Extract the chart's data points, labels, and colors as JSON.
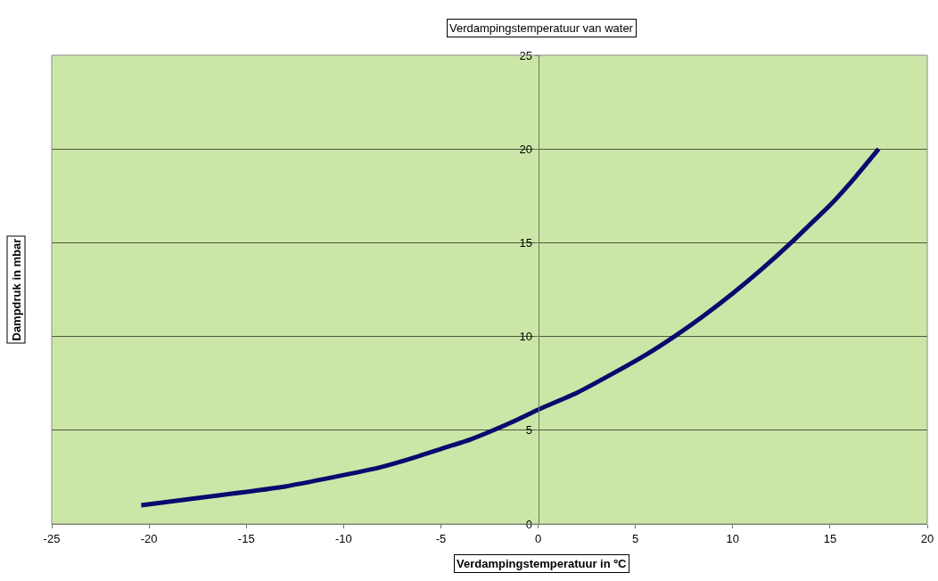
{
  "chart_data": {
    "type": "line",
    "title": "Verdampingstemperatuur van water",
    "xlabel": "Verdampingstemperatuur in ºC",
    "ylabel": "Dampdruk in mbar",
    "x": [
      -20.4,
      -17,
      -13,
      -10.5,
      -8.2,
      -6.5,
      -5,
      -3.5,
      -2.3,
      -1,
      0,
      2,
      3.8,
      5.5,
      7,
      8.5,
      10,
      11.5,
      13,
      14,
      15,
      16.3,
      17.5
    ],
    "series": [
      {
        "color": "#0a0a6e",
        "values": [
          1,
          1.45,
          2,
          2.5,
          3,
          3.5,
          4,
          4.5,
          5,
          5.6,
          6.1,
          7,
          8,
          9,
          10,
          11.1,
          12.3,
          13.6,
          15,
          16,
          17,
          18.5,
          20
        ]
      }
    ],
    "xlim": [
      -25,
      20
    ],
    "xticks": [
      -25,
      -20,
      -15,
      -10,
      -5,
      0,
      5,
      10,
      15,
      20
    ],
    "ylim": [
      0,
      25
    ],
    "yticks": [
      0,
      5,
      10,
      15,
      20,
      25
    ],
    "grid": "y",
    "marker": "none",
    "line_style": "solid"
  }
}
